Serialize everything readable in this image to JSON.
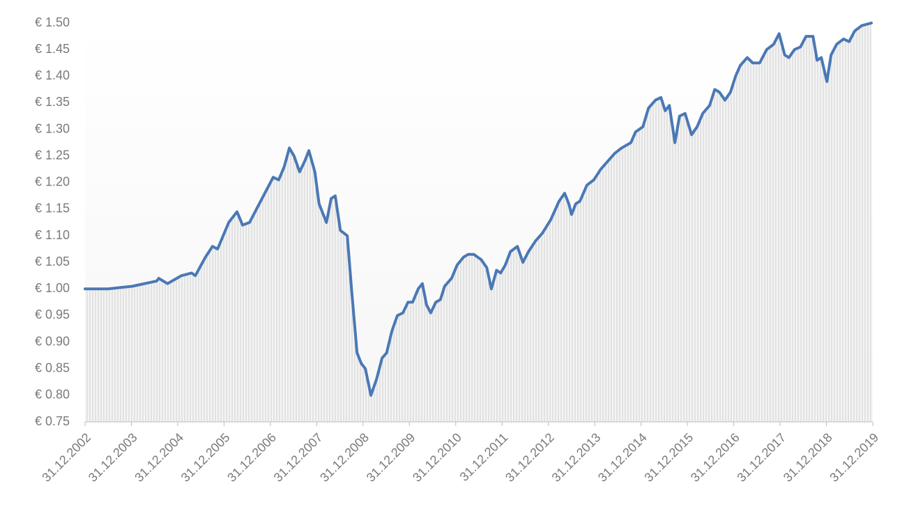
{
  "chart_data": {
    "type": "line",
    "color": "#4a78b5",
    "xlim": [
      2003,
      2020
    ],
    "xticks": [
      {
        "value": 2003,
        "label": "31.12.2002"
      },
      {
        "value": 2004,
        "label": "31.12.2003"
      },
      {
        "value": 2005,
        "label": "31.12.2004"
      },
      {
        "value": 2006,
        "label": "31.12.2005"
      },
      {
        "value": 2007,
        "label": "31.12.2006"
      },
      {
        "value": 2008,
        "label": "31.12.2007"
      },
      {
        "value": 2009,
        "label": "31.12.2008"
      },
      {
        "value": 2010,
        "label": "31.12.2009"
      },
      {
        "value": 2011,
        "label": "31.12.2010"
      },
      {
        "value": 2012,
        "label": "31.12.2011"
      },
      {
        "value": 2013,
        "label": "31.12.2012"
      },
      {
        "value": 2014,
        "label": "31.12.2013"
      },
      {
        "value": 2015,
        "label": "31.12.2014"
      },
      {
        "value": 2016,
        "label": "31.12.2015"
      },
      {
        "value": 2017,
        "label": "31.12.2016"
      },
      {
        "value": 2018,
        "label": "31.12.2017"
      },
      {
        "value": 2019,
        "label": "31.12.2018"
      },
      {
        "value": 2020,
        "label": "31.12.2019"
      }
    ],
    "ylim": [
      0.75,
      1.5
    ],
    "yticks": [
      {
        "value": 0.75,
        "label": "€ 0.75"
      },
      {
        "value": 0.8,
        "label": "€ 0.80"
      },
      {
        "value": 0.85,
        "label": "€ 0.85"
      },
      {
        "value": 0.9,
        "label": "€ 0.90"
      },
      {
        "value": 0.95,
        "label": "€ 0.95"
      },
      {
        "value": 1.0,
        "label": "€ 1.00"
      },
      {
        "value": 1.05,
        "label": "€ 1.05"
      },
      {
        "value": 1.1,
        "label": "€ 1.10"
      },
      {
        "value": 1.15,
        "label": "€ 1.15"
      },
      {
        "value": 1.2,
        "label": "€ 1.20"
      },
      {
        "value": 1.25,
        "label": "€ 1.25"
      },
      {
        "value": 1.3,
        "label": "€ 1.30"
      },
      {
        "value": 1.35,
        "label": "€ 1.35"
      },
      {
        "value": 1.4,
        "label": "€ 1.40"
      },
      {
        "value": 1.45,
        "label": "€ 1.45"
      },
      {
        "value": 1.5,
        "label": "€ 1.50"
      }
    ],
    "x": [
      2003,
      2003.5,
      2004.02,
      2004.55,
      2004.59,
      2004.78,
      2005.08,
      2005.3,
      2005.38,
      2005.6,
      2005.75,
      2005.86,
      2005.98,
      2006.1,
      2006.28,
      2006.4,
      2006.55,
      2006.7,
      2006.88,
      2007.06,
      2007.18,
      2007.3,
      2007.41,
      2007.51,
      2007.63,
      2007.74,
      2007.83,
      2007.96,
      2008.05,
      2008.21,
      2008.31,
      2008.4,
      2008.51,
      2008.66,
      2008.76,
      2008.87,
      2008.96,
      2009.05,
      2009.17,
      2009.29,
      2009.41,
      2009.51,
      2009.62,
      2009.74,
      2009.86,
      2009.97,
      2010.07,
      2010.19,
      2010.28,
      2010.37,
      2010.46,
      2010.57,
      2010.67,
      2010.76,
      2010.91,
      2011.03,
      2011.17,
      2011.27,
      2011.39,
      2011.55,
      2011.67,
      2011.77,
      2011.88,
      2011.97,
      2012.07,
      2012.18,
      2012.33,
      2012.45,
      2012.57,
      2012.72,
      2012.87,
      2013.05,
      2013.23,
      2013.35,
      2013.44,
      2013.5,
      2013.59,
      2013.68,
      2013.83,
      2013.98,
      2014.13,
      2014.28,
      2014.43,
      2014.58,
      2014.78,
      2014.88,
      2015.04,
      2015.16,
      2015.31,
      2015.43,
      2015.52,
      2015.61,
      2015.73,
      2015.83,
      2015.95,
      2016.09,
      2016.21,
      2016.33,
      2016.48,
      2016.59,
      2016.69,
      2016.81,
      2016.93,
      2017.04,
      2017.14,
      2017.29,
      2017.41,
      2017.56,
      2017.71,
      2017.86,
      2017.98,
      2018.1,
      2018.19,
      2018.31,
      2018.44,
      2018.56,
      2018.71,
      2018.8,
      2018.89,
      2019.01,
      2019.1,
      2019.22,
      2019.37,
      2019.49,
      2019.61,
      2019.76,
      2019.97
    ],
    "values": [
      1.0,
      1.0,
      1.005,
      1.015,
      1.02,
      1.01,
      1.025,
      1.03,
      1.025,
      1.06,
      1.08,
      1.075,
      1.1,
      1.125,
      1.145,
      1.12,
      1.125,
      1.15,
      1.18,
      1.21,
      1.205,
      1.23,
      1.265,
      1.25,
      1.22,
      1.24,
      1.26,
      1.22,
      1.16,
      1.125,
      1.17,
      1.175,
      1.11,
      1.1,
      0.99,
      0.88,
      0.86,
      0.85,
      0.8,
      0.83,
      0.87,
      0.88,
      0.92,
      0.95,
      0.955,
      0.975,
      0.975,
      1.0,
      1.01,
      0.97,
      0.955,
      0.975,
      0.98,
      1.005,
      1.02,
      1.045,
      1.06,
      1.065,
      1.065,
      1.055,
      1.04,
      1.0,
      1.035,
      1.03,
      1.045,
      1.07,
      1.08,
      1.05,
      1.07,
      1.09,
      1.105,
      1.13,
      1.165,
      1.18,
      1.16,
      1.14,
      1.16,
      1.165,
      1.195,
      1.205,
      1.225,
      1.24,
      1.255,
      1.265,
      1.275,
      1.295,
      1.305,
      1.34,
      1.355,
      1.36,
      1.335,
      1.345,
      1.275,
      1.325,
      1.33,
      1.29,
      1.305,
      1.33,
      1.345,
      1.375,
      1.37,
      1.355,
      1.37,
      1.4,
      1.42,
      1.435,
      1.425,
      1.425,
      1.45,
      1.46,
      1.48,
      1.44,
      1.435,
      1.45,
      1.455,
      1.475,
      1.475,
      1.43,
      1.435,
      1.39,
      1.44,
      1.46,
      1.47,
      1.465,
      1.485,
      1.495,
      1.5
    ]
  }
}
